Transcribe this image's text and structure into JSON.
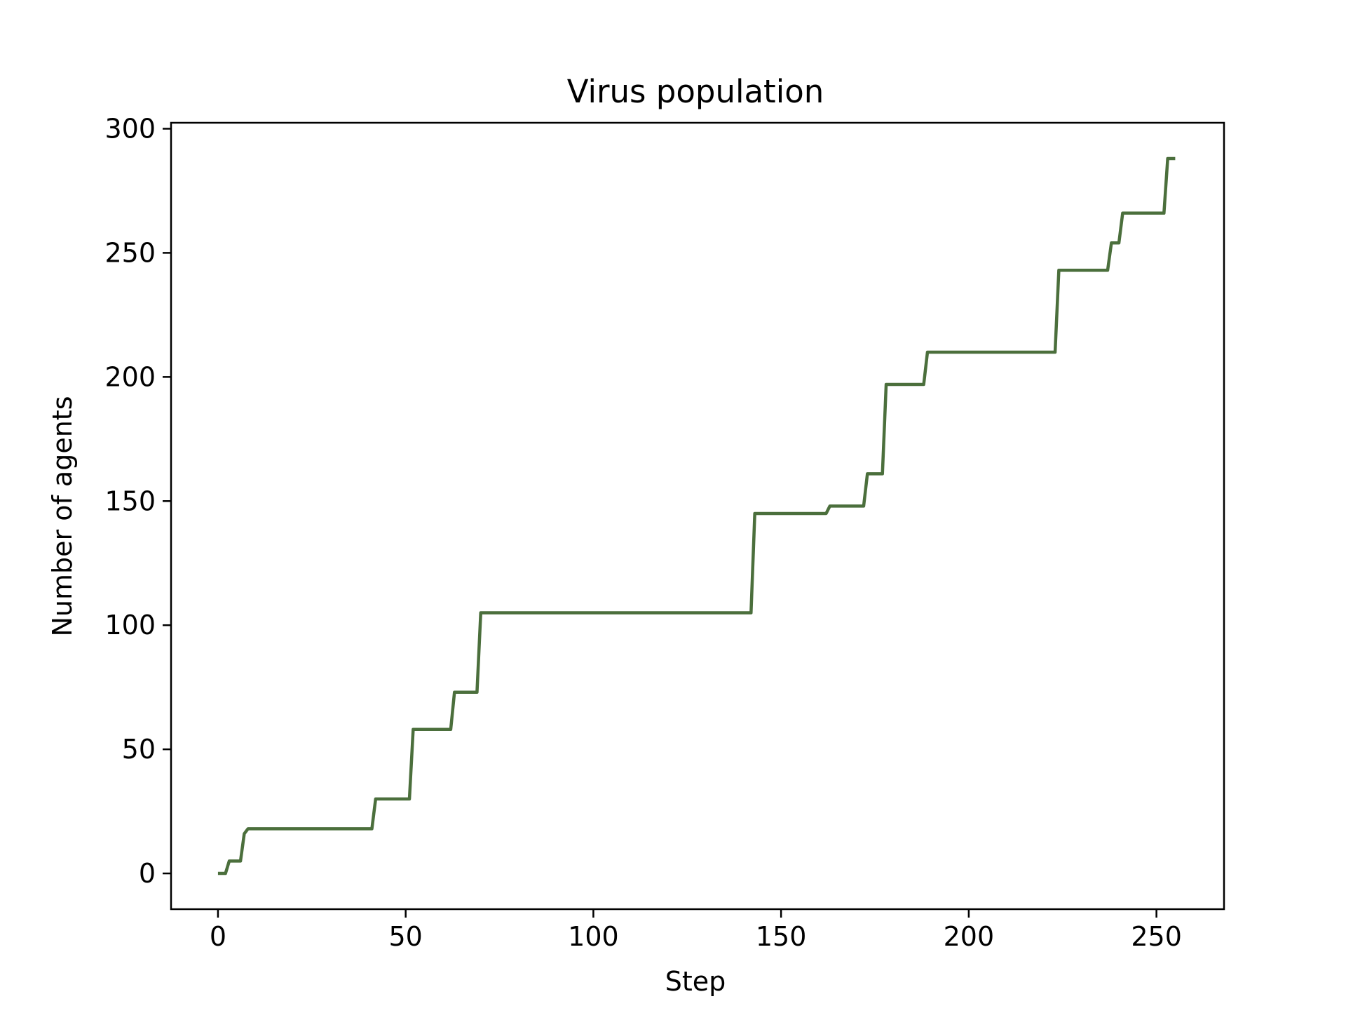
{
  "chart_data": {
    "type": "line",
    "title": "Virus population",
    "xlabel": "Step",
    "ylabel": "Number of agents",
    "xlim": [
      -12.5,
      268
    ],
    "ylim": [
      -14.4,
      302.4
    ],
    "xticks": [
      0,
      50,
      100,
      150,
      200,
      250
    ],
    "yticks": [
      0,
      50,
      100,
      150,
      200,
      250,
      300
    ],
    "grid": false,
    "legend": "none",
    "series": [
      {
        "color": "#4b6f3c",
        "x": [
          0,
          2,
          3,
          6,
          7,
          8,
          41,
          42,
          51,
          52,
          62,
          63,
          69,
          70,
          142,
          143,
          162,
          163,
          172,
          173,
          177,
          178,
          188,
          189,
          223,
          224,
          237,
          238,
          240,
          241,
          252,
          253,
          255
        ],
        "y": [
          0,
          0,
          5,
          5,
          16,
          18,
          18,
          30,
          30,
          58,
          58,
          73,
          73,
          105,
          105,
          145,
          145,
          148,
          148,
          161,
          161,
          197,
          197,
          210,
          210,
          243,
          243,
          254,
          254,
          266,
          266,
          288,
          288
        ]
      }
    ]
  }
}
